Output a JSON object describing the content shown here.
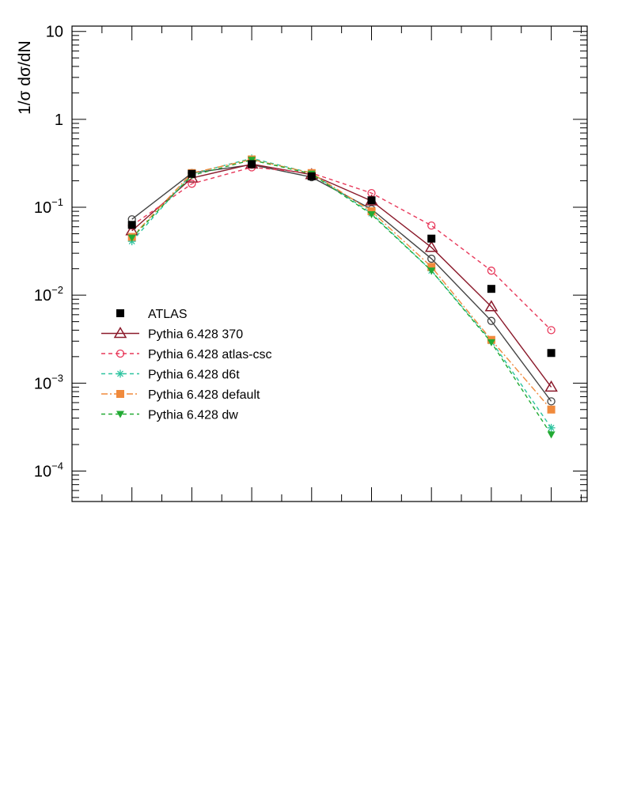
{
  "chart_data": {
    "type": "line",
    "ylabel": "1/σ dσ/dN",
    "xlabel": "",
    "yscale": "log",
    "ylim": [
      4.5e-05,
      11.5
    ],
    "xlim": [
      0,
      8.6
    ],
    "x": [
      1,
      2,
      3,
      4,
      5,
      6,
      7,
      8
    ],
    "y_ticks": [
      {
        "base": "10",
        "exp": "−4",
        "value": 0.0001
      },
      {
        "base": "10",
        "exp": "−3",
        "value": 0.001
      },
      {
        "base": "10",
        "exp": "−2",
        "value": 0.01
      },
      {
        "base": "10",
        "exp": "−1",
        "value": 0.1
      },
      {
        "base": "1",
        "exp": "",
        "value": 1
      },
      {
        "base": "10",
        "exp": "",
        "value": 10
      }
    ],
    "legend_position": "left-middle",
    "series": [
      {
        "name": "ATLAS",
        "color": "#000000",
        "marker": "square-filled",
        "line": "none",
        "values": [
          0.063,
          0.24,
          0.31,
          0.225,
          0.12,
          0.044,
          0.0118,
          0.0022
        ]
      },
      {
        "name": "Pythia 6.428 370",
        "color": "#8b1a2b",
        "marker": "triangle-open",
        "line": "solid",
        "values": [
          0.054,
          0.215,
          0.31,
          0.235,
          0.118,
          0.035,
          0.0074,
          0.0009
        ]
      },
      {
        "name": "Pythia 6.428 atlas-csc",
        "color": "#e8385a",
        "marker": "circle-open",
        "line": "dashed",
        "values": [
          0.062,
          0.185,
          0.285,
          0.245,
          0.145,
          0.062,
          0.019,
          0.004
        ]
      },
      {
        "name": "Pythia 6.428 d6t",
        "color": "#2ec4a0",
        "marker": "star",
        "line": "dashed",
        "values": [
          0.041,
          0.24,
          0.36,
          0.245,
          0.085,
          0.019,
          0.003,
          0.00031
        ]
      },
      {
        "name": "Pythia 6.428 default",
        "color": "#f08a3c",
        "marker": "square-filled",
        "line": "dashdot",
        "values": [
          0.046,
          0.245,
          0.35,
          0.245,
          0.09,
          0.021,
          0.0031,
          0.0005
        ]
      },
      {
        "name": "Pythia 6.428 dw",
        "color": "#22aa33",
        "marker": "triangle-down-filled",
        "line": "dashed",
        "values": [
          0.045,
          0.23,
          0.345,
          0.24,
          0.083,
          0.019,
          0.0029,
          0.00026
        ]
      },
      {
        "name": "",
        "color": "#444444",
        "marker": "circle-open-thin",
        "line": "solid",
        "values": [
          0.073,
          0.245,
          0.305,
          0.22,
          0.095,
          0.026,
          0.0051,
          0.00062
        ]
      }
    ]
  }
}
